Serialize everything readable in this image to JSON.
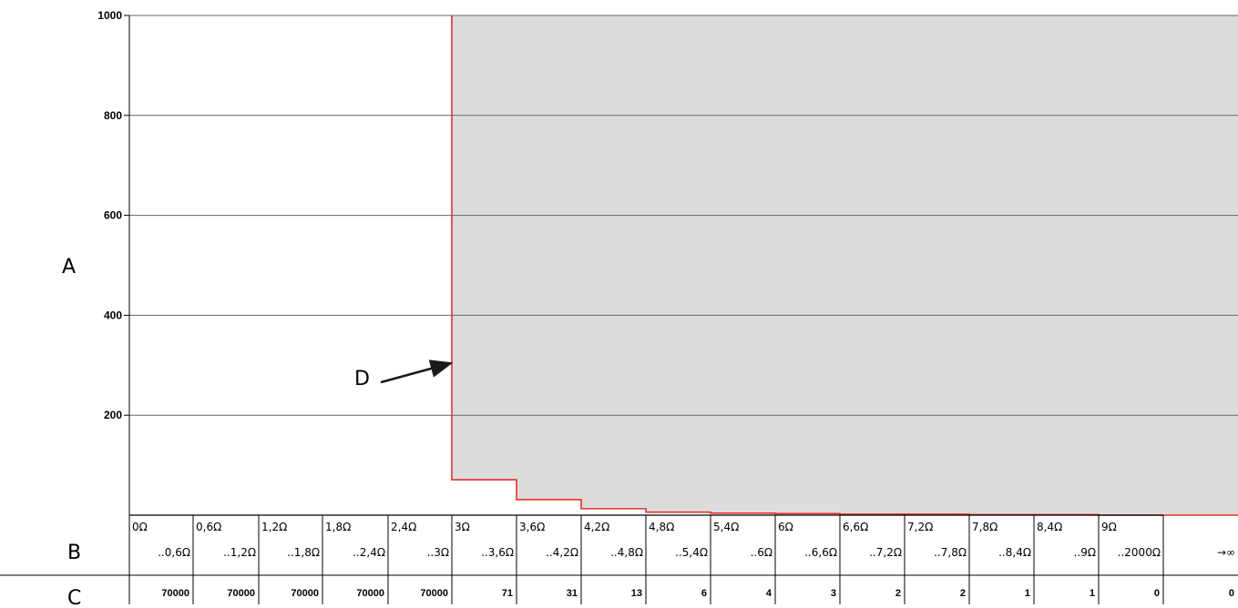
{
  "chart_data": {
    "type": "line",
    "step": true,
    "title": "",
    "ylim": [
      0,
      1000
    ],
    "yticks": [
      "200",
      "400",
      "600",
      "800",
      "1000"
    ],
    "ytick_values": [
      200,
      400,
      600,
      800,
      1000
    ],
    "grid": true,
    "labels": {
      "A": "A",
      "B": "B",
      "C": "C",
      "D": "D"
    },
    "bins": [
      {
        "top": "0Ω",
        "bottom": "..0,6Ω",
        "count": "70000",
        "value": 1000
      },
      {
        "top": "0,6Ω",
        "bottom": "..1,2Ω",
        "count": "70000",
        "value": 1000
      },
      {
        "top": "1,2Ω",
        "bottom": "..1,8Ω",
        "count": "70000",
        "value": 1000
      },
      {
        "top": "1,8Ω",
        "bottom": "..2,4Ω",
        "count": "70000",
        "value": 1000
      },
      {
        "top": "2,4Ω",
        "bottom": "..3Ω",
        "count": "70000",
        "value": 1000
      },
      {
        "top": "3Ω",
        "bottom": "..3,6Ω",
        "count": "71",
        "value": 71
      },
      {
        "top": "3,6Ω",
        "bottom": "..4,2Ω",
        "count": "31",
        "value": 31
      },
      {
        "top": "4,2Ω",
        "bottom": "..4,8Ω",
        "count": "13",
        "value": 13
      },
      {
        "top": "4,8Ω",
        "bottom": "..5,4Ω",
        "count": "6",
        "value": 6
      },
      {
        "top": "5,4Ω",
        "bottom": "..6Ω",
        "count": "4",
        "value": 4
      },
      {
        "top": "6Ω",
        "bottom": "..6,6Ω",
        "count": "3",
        "value": 3
      },
      {
        "top": "6,6Ω",
        "bottom": "..7,2Ω",
        "count": "2",
        "value": 2
      },
      {
        "top": "7,2Ω",
        "bottom": "..7,8Ω",
        "count": "2",
        "value": 2
      },
      {
        "top": "7,8Ω",
        "bottom": "..8,4Ω",
        "count": "1",
        "value": 1
      },
      {
        "top": "8,4Ω",
        "bottom": "..9Ω",
        "count": "1",
        "value": 1
      },
      {
        "top": "9Ω",
        "bottom": "..2000Ω",
        "count": "0",
        "value": 0
      },
      {
        "top": "",
        "bottom": "→∞",
        "count": "0",
        "value": 0
      }
    ],
    "colors": {
      "step_line": "#e8302a",
      "shade": "#dcdcdc",
      "grid": "#666666",
      "axis": "#000000"
    }
  }
}
